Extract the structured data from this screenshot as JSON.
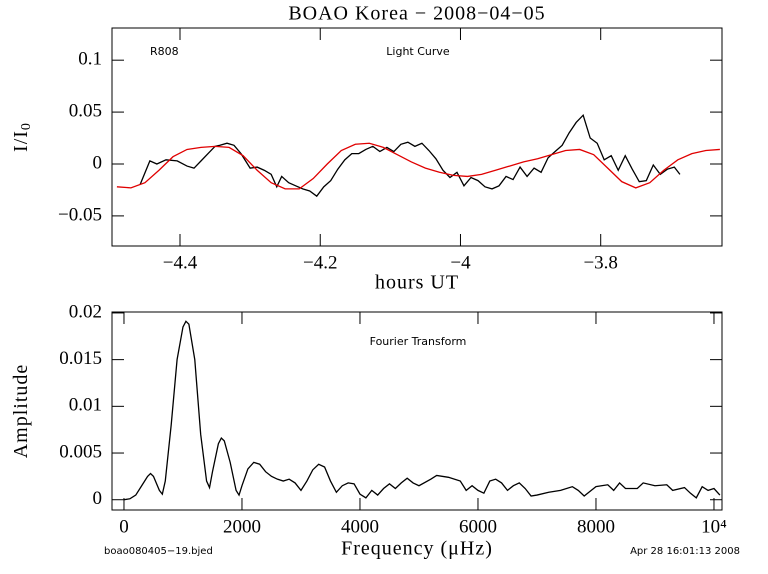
{
  "chart_data": [
    {
      "type": "line",
      "title": "BOAO Korea − 2008−04−05",
      "xlabel": "hours UT",
      "ylabel": "I/I",
      "ylabel_sub": "0",
      "annotations": [
        "R808",
        "Light Curve"
      ],
      "xlim": [
        -4.497,
        -3.627
      ],
      "ylim": [
        -0.079,
        0.131
      ],
      "xticks": [
        {
          "value": -4.4,
          "label": "−4.4"
        },
        {
          "value": -4.2,
          "label": "−4.2"
        },
        {
          "value": -4,
          "label": "−4"
        },
        {
          "value": -3.8,
          "label": "−3.8"
        }
      ],
      "yticks": [
        {
          "value": -0.05,
          "label": "−0.05"
        },
        0,
        0.05,
        0.1
      ],
      "series": [
        {
          "color": "#000000",
          "x": [
            -4.457,
            -4.443,
            -4.433,
            -4.42,
            -4.404,
            -4.39,
            -4.38,
            -4.37,
            -4.36,
            -4.35,
            -4.343,
            -4.333,
            -4.323,
            -4.313,
            -4.3,
            -4.29,
            -4.28,
            -4.27,
            -4.262,
            -4.255,
            -4.245,
            -4.235,
            -4.225,
            -4.215,
            -4.205,
            -4.195,
            -4.185,
            -4.175,
            -4.165,
            -4.155,
            -4.145,
            -4.135,
            -4.125,
            -4.115,
            -4.105,
            -4.095,
            -4.085,
            -4.075,
            -4.065,
            -4.055,
            -4.045,
            -4.035,
            -4.025,
            -4.015,
            -4.005,
            -3.995,
            -3.985,
            -3.975,
            -3.965,
            -3.955,
            -3.945,
            -3.935,
            -3.925,
            -3.915,
            -3.905,
            -3.895,
            -3.885,
            -3.875,
            -3.865,
            -3.855,
            -3.845,
            -3.835,
            -3.825,
            -3.815,
            -3.805,
            -3.795,
            -3.785,
            -3.775,
            -3.765,
            -3.755,
            -3.745,
            -3.735,
            -3.725,
            -3.715,
            -3.705,
            -3.695,
            -3.687
          ],
          "values": [
            -0.02,
            0.003,
            0,
            0.004,
            0.003,
            -0.002,
            -0.004,
            0.003,
            0.01,
            0.017,
            0.018,
            0.02,
            0.018,
            0.01,
            -0.004,
            -0.003,
            -0.006,
            -0.01,
            -0.022,
            -0.012,
            -0.018,
            -0.021,
            -0.024,
            -0.026,
            -0.031,
            -0.022,
            -0.016,
            -0.005,
            0.004,
            0.01,
            0.01,
            0.014,
            0.017,
            0.012,
            0.016,
            0.012,
            0.019,
            0.021,
            0.017,
            0.02,
            0.013,
            0.005,
            -0.006,
            -0.013,
            -0.008,
            -0.021,
            -0.013,
            -0.016,
            -0.022,
            -0.024,
            -0.021,
            -0.012,
            -0.015,
            -0.003,
            -0.012,
            -0.004,
            -0.008,
            0.006,
            0.012,
            0.018,
            0.03,
            0.04,
            0.047,
            0.025,
            0.02,
            0.004,
            0.008,
            -0.006,
            0.008,
            -0.005,
            -0.017,
            -0.016,
            -0.001,
            -0.01,
            -0.005,
            -0.003,
            -0.01
          ]
        },
        {
          "color": "#e00000",
          "x": [
            -4.49,
            -4.47,
            -4.45,
            -4.43,
            -4.41,
            -4.39,
            -4.37,
            -4.35,
            -4.33,
            -4.31,
            -4.29,
            -4.27,
            -4.25,
            -4.23,
            -4.21,
            -4.19,
            -4.17,
            -4.15,
            -4.13,
            -4.11,
            -4.09,
            -4.07,
            -4.05,
            -4.03,
            -4.01,
            -3.99,
            -3.97,
            -3.95,
            -3.93,
            -3.91,
            -3.89,
            -3.87,
            -3.85,
            -3.83,
            -3.81,
            -3.79,
            -3.77,
            -3.75,
            -3.73,
            -3.71,
            -3.69,
            -3.67,
            -3.65,
            -3.63
          ],
          "values": [
            -0.022,
            -0.023,
            -0.018,
            -0.006,
            0.007,
            0.014,
            0.016,
            0.017,
            0.016,
            0.008,
            -0.006,
            -0.018,
            -0.024,
            -0.024,
            -0.014,
            0,
            0.013,
            0.019,
            0.02,
            0.016,
            0.009,
            0.002,
            -0.004,
            -0.008,
            -0.011,
            -0.012,
            -0.01,
            -0.006,
            -0.002,
            0.002,
            0.005,
            0.009,
            0.013,
            0.014,
            0.009,
            -0.004,
            -0.017,
            -0.023,
            -0.018,
            -0.006,
            0.004,
            0.01,
            0.013,
            0.014
          ]
        }
      ]
    },
    {
      "type": "line",
      "xlabel": "Frequency (μHz)",
      "ylabel": "Amplitude",
      "annotations": [
        "Fourier Transform"
      ],
      "xlim": [
        -203,
        10136
      ],
      "ylim": [
        -0.0011,
        0.0201
      ],
      "xticks": [
        0,
        2000,
        4000,
        6000,
        8000,
        {
          "value": 10000,
          "label": "10⁴"
        }
      ],
      "yticks": [
        0,
        0.005,
        0.01,
        0.015,
        0.02
      ],
      "series": [
        {
          "color": "#000000",
          "x": [
            0,
            100,
            200,
            300,
            400,
            450,
            500,
            600,
            650,
            700,
            800,
            900,
            1000,
            1050,
            1100,
            1200,
            1300,
            1400,
            1450,
            1500,
            1600,
            1650,
            1700,
            1800,
            1900,
            1950,
            2000,
            2100,
            2200,
            2300,
            2400,
            2500,
            2600,
            2700,
            2800,
            2900,
            3000,
            3100,
            3200,
            3300,
            3400,
            3500,
            3600,
            3700,
            3800,
            3900,
            4000,
            4100,
            4200,
            4300,
            4400,
            4500,
            4600,
            4700,
            4800,
            4900,
            5000,
            5200,
            5300,
            5500,
            5700,
            5800,
            5900,
            6000,
            6100,
            6200,
            6300,
            6400,
            6500,
            6600,
            6700,
            6800,
            6900,
            7000,
            7200,
            7400,
            7600,
            7700,
            7800,
            8000,
            8200,
            8300,
            8400,
            8500,
            8700,
            8800,
            9000,
            9200,
            9300,
            9500,
            9600,
            9700,
            9800,
            9900,
            10000,
            10100
          ],
          "values": [
            0,
            0.0001,
            0.0005,
            0.0015,
            0.0025,
            0.0028,
            0.0025,
            0.001,
            0.0006,
            0.002,
            0.008,
            0.015,
            0.0185,
            0.0191,
            0.0188,
            0.015,
            0.007,
            0.002,
            0.0013,
            0.003,
            0.006,
            0.0066,
            0.0063,
            0.004,
            0.001,
            0.0005,
            0.0015,
            0.0033,
            0.004,
            0.0038,
            0.003,
            0.0025,
            0.0022,
            0.002,
            0.0022,
            0.0018,
            0.001,
            0.002,
            0.0032,
            0.0038,
            0.0035,
            0.002,
            0.0008,
            0.0015,
            0.0018,
            0.0017,
            0.0006,
            0.0002,
            0.001,
            0.0005,
            0.0012,
            0.0017,
            0.0012,
            0.0018,
            0.0023,
            0.0018,
            0.0015,
            0.0022,
            0.0026,
            0.0024,
            0.002,
            0.001,
            0.0015,
            0.001,
            0.0007,
            0.002,
            0.0022,
            0.0018,
            0.001,
            0.0015,
            0.0018,
            0.0012,
            0.0004,
            0.0005,
            0.0008,
            0.001,
            0.0014,
            0.001,
            0.0004,
            0.0014,
            0.0016,
            0.001,
            0.0018,
            0.0012,
            0.0012,
            0.0018,
            0.0015,
            0.0016,
            0.001,
            0.0013,
            0.0007,
            0.0002,
            0.0014,
            0.001,
            0.0012,
            0.0005
          ]
        }
      ]
    }
  ],
  "footer": [
    "boao080405−19.bjed",
    "Apr 28 16:01:13 2008"
  ]
}
